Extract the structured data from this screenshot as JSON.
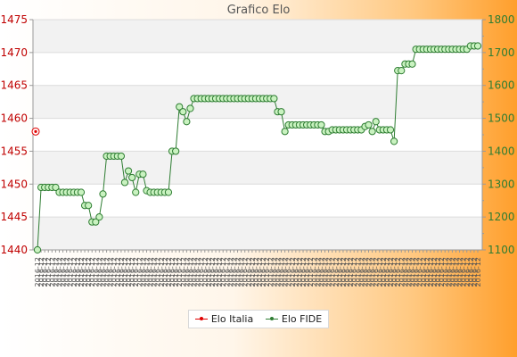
{
  "chart_data": {
    "type": "line",
    "title": "Grafico Elo",
    "left_axis": {
      "ylim": [
        1440,
        1475
      ],
      "ticks": [
        1440,
        1445,
        1450,
        1455,
        1460,
        1465,
        1470,
        1475
      ],
      "color": "#c00000"
    },
    "right_axis": {
      "ylim": [
        1100,
        1800
      ],
      "ticks": [
        1100,
        1200,
        1300,
        1400,
        1500,
        1600,
        1700,
        1800
      ],
      "color": "#2e7d32"
    },
    "x_tick_label": "2016-12",
    "grid": true,
    "legend_placement": "bottom",
    "series": [
      {
        "name": "Elo Italia",
        "axis": "left",
        "color": "#e00000",
        "points": [
          [
            0,
            1458
          ]
        ]
      },
      {
        "name": "Elo FIDE",
        "axis": "right",
        "color": "#2e7d32",
        "marker_fill": "#c9f2c0",
        "values": [
          1100,
          1290,
          1290,
          1290,
          1290,
          1290,
          1275,
          1275,
          1275,
          1275,
          1275,
          1275,
          1275,
          1235,
          1235,
          1185,
          1185,
          1200,
          1270,
          1385,
          1385,
          1385,
          1385,
          1385,
          1305,
          1340,
          1320,
          1275,
          1330,
          1330,
          1280,
          1275,
          1275,
          1275,
          1275,
          1275,
          1275,
          1400,
          1400,
          1535,
          1520,
          1490,
          1530,
          1560,
          1560,
          1560,
          1560,
          1560,
          1560,
          1560,
          1560,
          1560,
          1560,
          1560,
          1560,
          1560,
          1560,
          1560,
          1560,
          1560,
          1560,
          1560,
          1560,
          1560,
          1560,
          1560,
          1520,
          1520,
          1460,
          1480,
          1480,
          1480,
          1480,
          1480,
          1480,
          1480,
          1480,
          1480,
          1480,
          1460,
          1460,
          1465,
          1465,
          1465,
          1465,
          1465,
          1465,
          1465,
          1465,
          1465,
          1475,
          1480,
          1460,
          1490,
          1465,
          1465,
          1465,
          1465,
          1430,
          1645,
          1645,
          1665,
          1665,
          1665,
          1710,
          1710,
          1710,
          1710,
          1710,
          1710,
          1710,
          1710,
          1710,
          1710,
          1710,
          1710,
          1710,
          1710,
          1710,
          1720,
          1720,
          1720
        ]
      }
    ]
  }
}
